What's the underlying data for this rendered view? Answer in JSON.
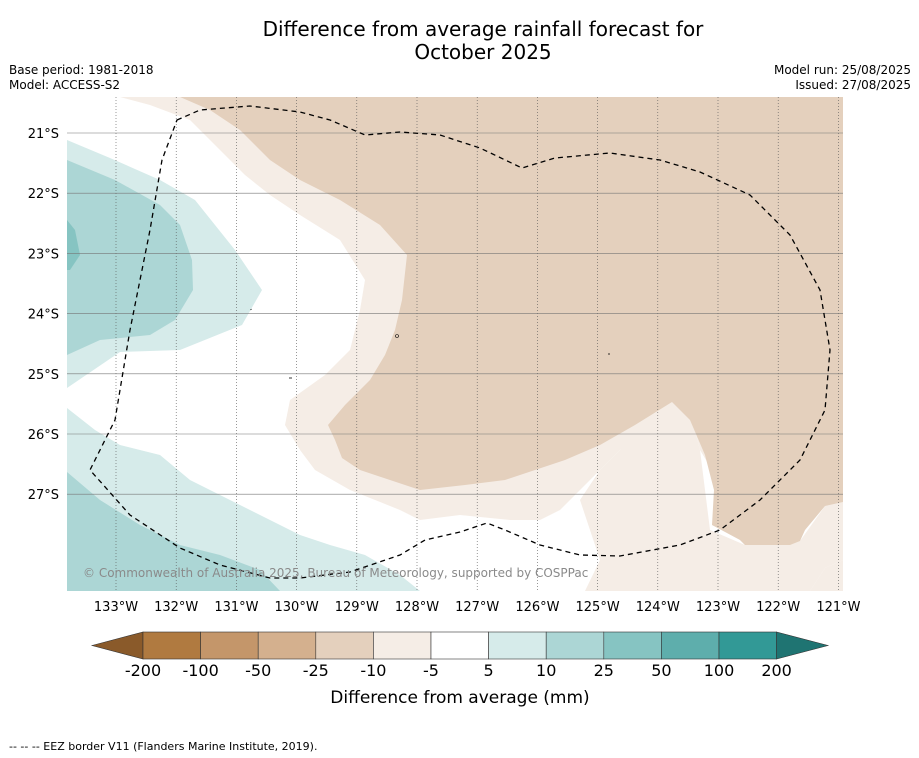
{
  "title_line1": "Difference from average rainfall forecast for",
  "title_line2": "October 2025",
  "meta": {
    "base_period": "Base period: 1981-2018",
    "model": "Model: ACCESS-S2",
    "model_run": "Model run: 25/08/2025",
    "issued": "Issued: 27/08/2025"
  },
  "copyright": "© Commonwealth of Australia 2025, Bureau of Meteorology, supported by COSPPac",
  "lon_labels": [
    "133°W",
    "132°W",
    "131°W",
    "130°W",
    "129°W",
    "128°W",
    "127°W",
    "126°W",
    "125°W",
    "124°W",
    "123°W",
    "122°W",
    "121°W"
  ],
  "lat_labels": [
    "21°S",
    "22°S",
    "23°S",
    "24°S",
    "25°S",
    "26°S",
    "27°S"
  ],
  "colorbar": {
    "ticks": [
      "-200",
      "-100",
      "-50",
      "-25",
      "-10",
      "-5",
      "5",
      "10",
      "25",
      "50",
      "100",
      "200"
    ],
    "label": "Difference from average (mm)",
    "colors": {
      "below_min": "#8a5a2a",
      "bins": [
        "#b07a40",
        "#c4966a",
        "#d4b08e",
        "#e4d0bd",
        "#f5ede6",
        "#ffffff",
        "#d6ebea",
        "#acd6d5",
        "#86c4c2",
        "#5eaeac",
        "#329996"
      ],
      "above_max": "#1f7472"
    }
  },
  "legend_note": "--  --  -- EEZ border V11 (Flanders Marine Institute, 2019)."
}
